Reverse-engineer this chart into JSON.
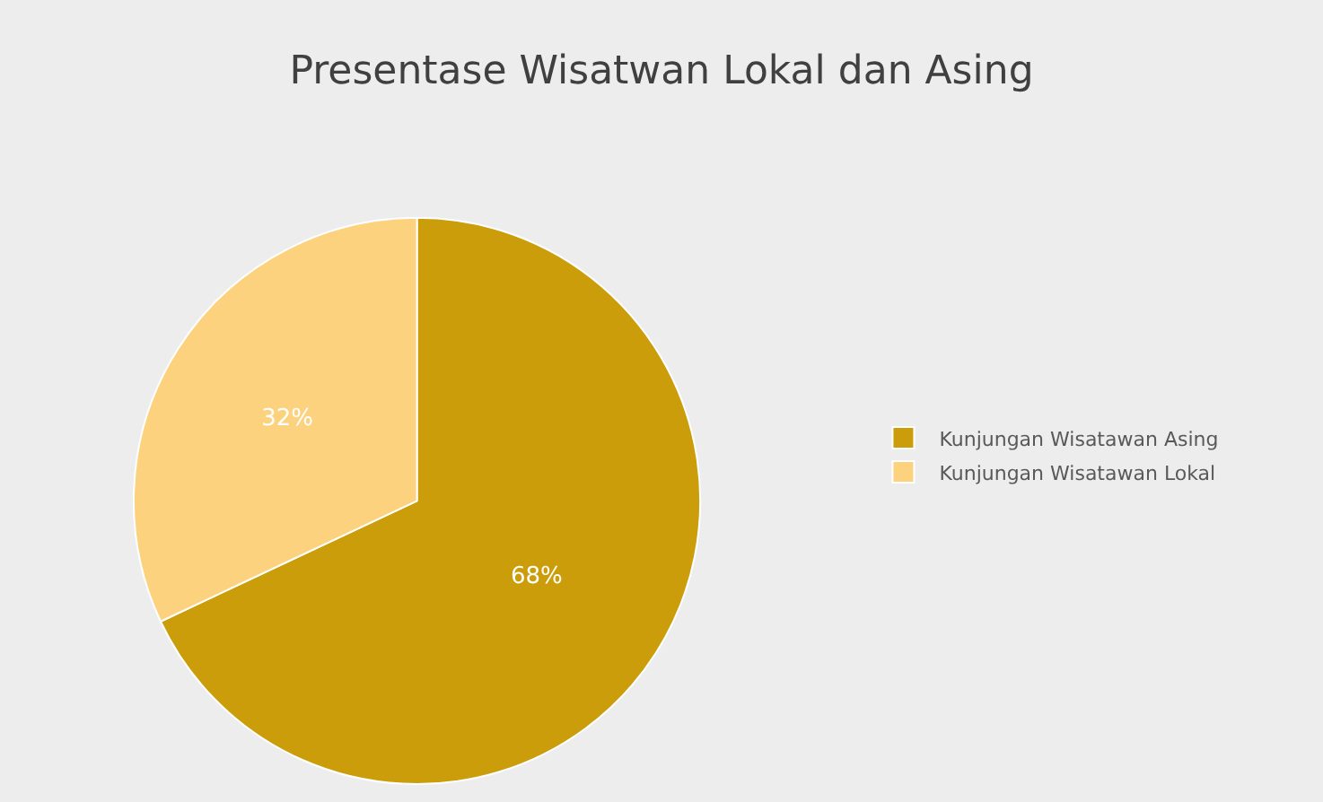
{
  "chart_data": {
    "type": "pie",
    "title": "Presentase Wisatwan Lokal dan Asing",
    "categories": [
      "Kunjungan Wisatawan Asing",
      "Kunjungan Wisatawan Lokal"
    ],
    "values": [
      68,
      32
    ],
    "value_labels": [
      "68%",
      "32%"
    ],
    "colors": [
      "#cc9d0a",
      "#fcd27f"
    ],
    "legend": "right"
  }
}
